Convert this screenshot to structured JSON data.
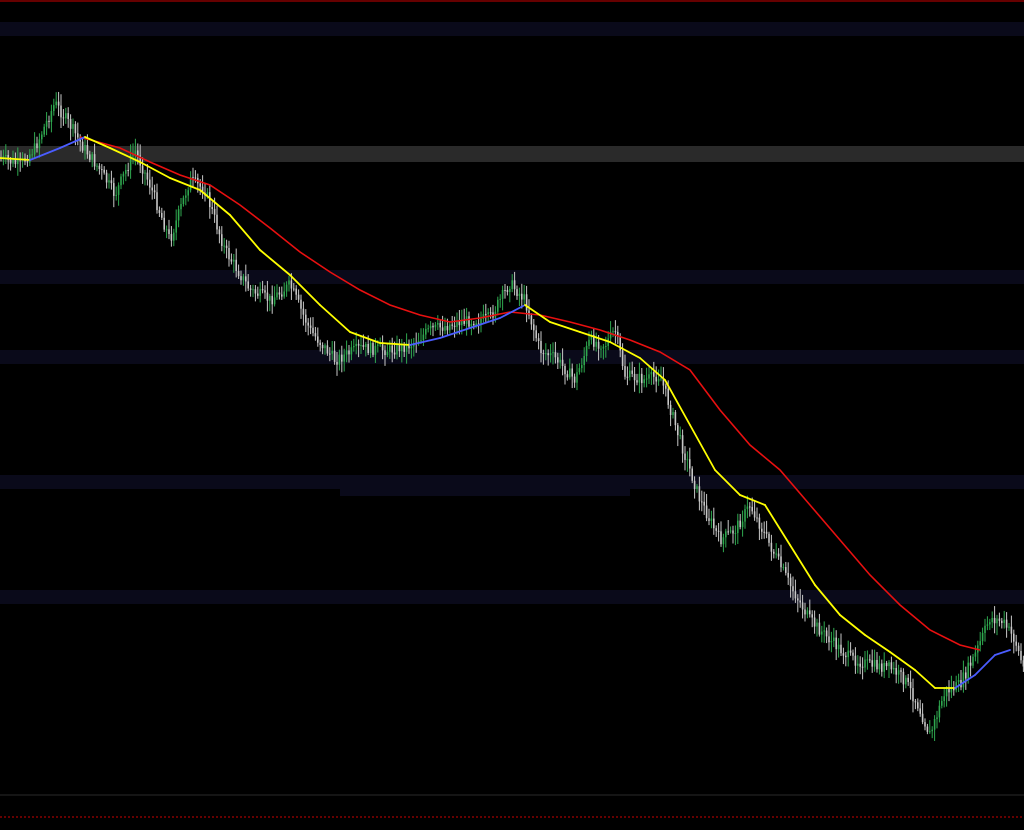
{
  "chart_data": {
    "type": "candlestick-line",
    "title": "",
    "xlabel": "",
    "ylabel": "",
    "grid": false,
    "legend": "none",
    "ylim": [
      0,
      830
    ],
    "colors": {
      "background": "#000000",
      "up_candle": "#2fa84f",
      "down_candle": "#c8c8c8",
      "ma_fast_up": "#4a5cff",
      "ma_fast_down": "#ffff00",
      "ma_slow": "#e81010",
      "band_highlight": "#2a2a2a",
      "band_faint": "#0a0a1a",
      "border": "#cc0000"
    },
    "price_path": [
      [
        0,
        158
      ],
      [
        20,
        165
      ],
      [
        35,
        148
      ],
      [
        55,
        103
      ],
      [
        70,
        125
      ],
      [
        82,
        145
      ],
      [
        100,
        170
      ],
      [
        115,
        195
      ],
      [
        135,
        150
      ],
      [
        150,
        185
      ],
      [
        170,
        240
      ],
      [
        190,
        180
      ],
      [
        205,
        190
      ],
      [
        225,
        250
      ],
      [
        250,
        290
      ],
      [
        270,
        300
      ],
      [
        290,
        285
      ],
      [
        310,
        330
      ],
      [
        335,
        360
      ],
      [
        360,
        348
      ],
      [
        390,
        350
      ],
      [
        410,
        345
      ],
      [
        430,
        330
      ],
      [
        460,
        322
      ],
      [
        490,
        318
      ],
      [
        510,
        283
      ],
      [
        525,
        300
      ],
      [
        540,
        350
      ],
      [
        555,
        358
      ],
      [
        575,
        380
      ],
      [
        590,
        340
      ],
      [
        605,
        345
      ],
      [
        615,
        330
      ],
      [
        625,
        375
      ],
      [
        645,
        380
      ],
      [
        660,
        375
      ],
      [
        680,
        440
      ],
      [
        700,
        500
      ],
      [
        720,
        540
      ],
      [
        735,
        530
      ],
      [
        750,
        505
      ],
      [
        770,
        545
      ],
      [
        790,
        585
      ],
      [
        810,
        620
      ],
      [
        830,
        640
      ],
      [
        850,
        658
      ],
      [
        870,
        665
      ],
      [
        890,
        668
      ],
      [
        905,
        680
      ],
      [
        918,
        705
      ],
      [
        930,
        735
      ],
      [
        945,
        692
      ],
      [
        960,
        685
      ],
      [
        975,
        655
      ],
      [
        990,
        618
      ],
      [
        1003,
        622
      ],
      [
        1015,
        640
      ],
      [
        1024,
        670
      ]
    ],
    "ma_fast": [
      [
        0,
        158
      ],
      [
        30,
        160
      ],
      [
        60,
        148
      ],
      [
        85,
        137
      ],
      [
        110,
        148
      ],
      [
        140,
        162
      ],
      [
        170,
        178
      ],
      [
        200,
        190
      ],
      [
        230,
        215
      ],
      [
        260,
        250
      ],
      [
        290,
        275
      ],
      [
        320,
        305
      ],
      [
        350,
        332
      ],
      [
        380,
        343
      ],
      [
        410,
        345
      ],
      [
        440,
        338
      ],
      [
        470,
        328
      ],
      [
        500,
        318
      ],
      [
        525,
        305
      ],
      [
        550,
        322
      ],
      [
        580,
        332
      ],
      [
        610,
        342
      ],
      [
        640,
        358
      ],
      [
        665,
        380
      ],
      [
        690,
        425
      ],
      [
        715,
        470
      ],
      [
        740,
        495
      ],
      [
        765,
        505
      ],
      [
        790,
        545
      ],
      [
        815,
        585
      ],
      [
        840,
        615
      ],
      [
        865,
        635
      ],
      [
        890,
        652
      ],
      [
        915,
        670
      ],
      [
        935,
        688
      ],
      [
        955,
        688
      ],
      [
        975,
        675
      ],
      [
        995,
        655
      ],
      [
        1010,
        650
      ]
    ],
    "ma_slow": [
      [
        80,
        137
      ],
      [
        120,
        148
      ],
      [
        150,
        162
      ],
      [
        180,
        175
      ],
      [
        210,
        185
      ],
      [
        240,
        205
      ],
      [
        270,
        228
      ],
      [
        300,
        252
      ],
      [
        330,
        272
      ],
      [
        360,
        290
      ],
      [
        390,
        305
      ],
      [
        420,
        315
      ],
      [
        450,
        322
      ],
      [
        480,
        318
      ],
      [
        510,
        312
      ],
      [
        540,
        315
      ],
      [
        570,
        322
      ],
      [
        600,
        330
      ],
      [
        630,
        340
      ],
      [
        660,
        352
      ],
      [
        690,
        370
      ],
      [
        720,
        410
      ],
      [
        750,
        445
      ],
      [
        780,
        470
      ],
      [
        810,
        505
      ],
      [
        840,
        540
      ],
      [
        870,
        575
      ],
      [
        900,
        605
      ],
      [
        930,
        630
      ],
      [
        960,
        645
      ],
      [
        980,
        650
      ]
    ]
  }
}
